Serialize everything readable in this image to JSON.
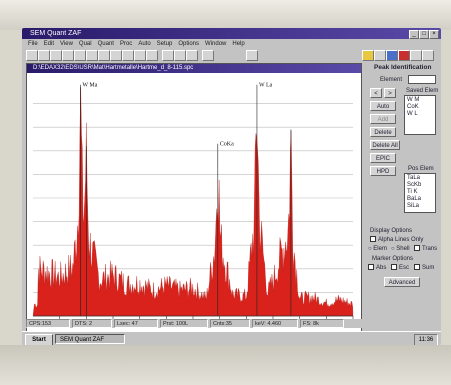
{
  "window": {
    "title": "SEM Quant ZAF"
  },
  "menu": [
    "File",
    "Edit",
    "View",
    "Qual",
    "Quant",
    "Proc",
    "Auto",
    "Setup",
    "Options",
    "Window",
    "Help"
  ],
  "spectrum_window": {
    "title": "D:\\EDAX32\\EDS\\USR\\Mat\\Hartmetalle\\Hartme_d_8-115.spc"
  },
  "peak_labels": {
    "w_ma": "W Ma",
    "co_ka": "CoKa",
    "w_la": "W La"
  },
  "panel": {
    "title": "Peak Identification",
    "element_label": "Element",
    "element_value": "",
    "saved_label": "Saved Elem",
    "saved_items": [
      "W M",
      "CoK",
      "W L"
    ],
    "buttons": {
      "prev": "<",
      "next": ">",
      "auto": "Auto",
      "add": "Add",
      "delete": "Delete",
      "delete_all": "Delete All",
      "epic": "EPIC",
      "hpd": "HPD"
    },
    "pos_label": "Pos Elem",
    "pos_items": [
      "TaLa",
      "ScKb",
      "Ti K",
      "BaLa",
      "SiLa"
    ],
    "display_options": "Display Options",
    "alpha_lines": "Alpha Lines Only",
    "elem": "Elem",
    "shell": "Shell",
    "trans": "Trans",
    "marker_options": "Marker Options",
    "abs": "Abs",
    "esc": "Esc",
    "sum": "Sum",
    "advanced": "Advanced"
  },
  "status": [
    "CPS:153",
    "DTS: 2",
    "Lsec: 47",
    "Prst: 100L",
    "Cnts:35",
    "keV: 4.460",
    "FS: 8k"
  ],
  "taskbar": {
    "start": "Start",
    "task": "SEM Quant ZAF",
    "clock": "11:36"
  },
  "colors": {
    "spectrum": "#d8221b",
    "title_bar": "#3a2a8a",
    "panel_bg": "#c3c3c3"
  },
  "chart_data": {
    "type": "area",
    "x": [
      0.2,
      0.5,
      1.0,
      1.5,
      1.775,
      2.0,
      2.5,
      3.0,
      3.5,
      4.0,
      4.5,
      5.0,
      5.5,
      6.0,
      6.5,
      6.93,
      7.5,
      8.0,
      8.398,
      8.8,
      9.0,
      9.672,
      10.0,
      10.5,
      11.0,
      11.5,
      12.0
    ],
    "y": [
      40,
      38,
      33,
      42,
      98,
      72,
      31,
      35,
      27,
      28,
      22,
      26,
      22,
      24,
      15,
      73,
      18,
      17,
      98,
      20,
      30,
      79,
      15,
      16,
      11,
      14,
      10
    ],
    "annotations": [
      "W Ma",
      "CoKa",
      "W La"
    ],
    "series": [
      {
        "values": [
          40,
          38,
          33,
          42,
          98,
          72,
          31,
          35,
          27,
          28,
          22,
          26,
          22,
          24,
          15,
          73,
          18,
          17,
          98,
          20,
          30,
          79,
          15,
          16,
          11,
          14,
          10
        ]
      }
    ],
    "ylim": [
      0,
      100
    ],
    "grid": true
  }
}
